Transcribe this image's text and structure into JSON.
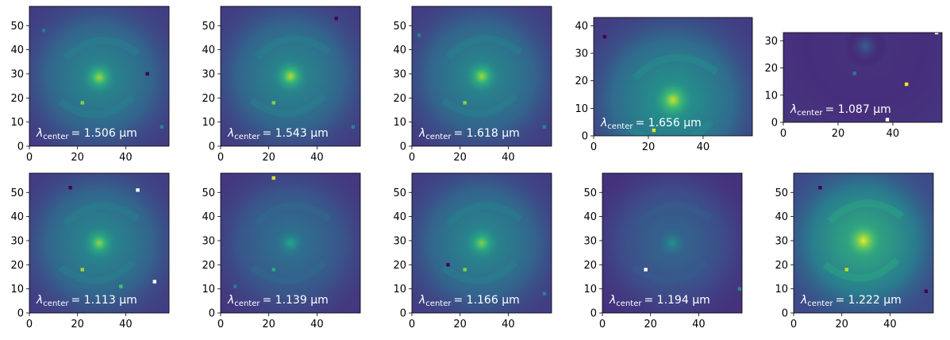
{
  "chart_data": {
    "type": "heatmap",
    "colormap": "viridis",
    "panels": [
      {
        "label_var": "λ",
        "label_sub": "center",
        "value": "1.506",
        "unit": "μm",
        "extent": [
          0,
          58,
          0,
          58
        ],
        "xticks": [
          0,
          20,
          40
        ],
        "yticks": [
          0,
          10,
          20,
          30,
          40,
          50
        ],
        "galaxy": {
          "cx": 29,
          "cy": 28.5,
          "peak": 0.85,
          "disk": 0.4,
          "bg": 0.18
        },
        "sources": [
          {
            "x": 22,
            "y": 18,
            "v": 0.8
          },
          {
            "x": 55,
            "y": 8,
            "v": 0.45
          },
          {
            "x": 49,
            "y": 30,
            "v": 0.0
          },
          {
            "x": 6,
            "y": 48,
            "v": 0.4
          }
        ]
      },
      {
        "label_var": "λ",
        "label_sub": "center",
        "value": "1.543",
        "unit": "μm",
        "extent": [
          0,
          58,
          0,
          58
        ],
        "xticks": [
          0,
          20,
          40
        ],
        "yticks": [
          0,
          10,
          20,
          30,
          40,
          50
        ],
        "galaxy": {
          "cx": 29,
          "cy": 29,
          "peak": 0.88,
          "disk": 0.4,
          "bg": 0.18
        },
        "sources": [
          {
            "x": 22,
            "y": 18,
            "v": 0.8
          },
          {
            "x": 55,
            "y": 8,
            "v": 0.45
          },
          {
            "x": 48,
            "y": 53,
            "v": 0.0
          }
        ]
      },
      {
        "label_var": "λ",
        "label_sub": "center",
        "value": "1.618",
        "unit": "μm",
        "extent": [
          0,
          58,
          0,
          58
        ],
        "xticks": [
          0,
          20,
          40
        ],
        "yticks": [
          0,
          10,
          20,
          30,
          40,
          50
        ],
        "galaxy": {
          "cx": 29,
          "cy": 29,
          "peak": 0.85,
          "disk": 0.4,
          "bg": 0.18
        },
        "sources": [
          {
            "x": 22,
            "y": 18,
            "v": 0.8
          },
          {
            "x": 55,
            "y": 8,
            "v": 0.45
          },
          {
            "x": 3,
            "y": 46,
            "v": 0.45
          }
        ]
      },
      {
        "label_var": "λ",
        "label_sub": "center",
        "value": "1.656",
        "unit": "μm",
        "extent": [
          0,
          58,
          0,
          43
        ],
        "xticks": [
          0,
          20,
          40
        ],
        "yticks": [
          0,
          10,
          20,
          30,
          40
        ],
        "galaxy": {
          "cx": 29,
          "cy": 13,
          "peak": 0.92,
          "disk": 0.45,
          "bg": 0.18
        },
        "sources": [
          {
            "x": 22,
            "y": 2,
            "v": 0.95
          },
          {
            "x": 4,
            "y": 36,
            "v": 0.0
          }
        ]
      },
      {
        "label_var": "λ",
        "label_sub": "center",
        "value": "1.087",
        "unit": "μm",
        "extent": [
          0,
          58,
          0,
          33
        ],
        "xticks": [
          0,
          20,
          40
        ],
        "yticks": [
          0,
          10,
          20,
          30
        ],
        "galaxy": {
          "cx": 30,
          "cy": 28,
          "peak": 0.3,
          "disk": 0.05,
          "bg": 0.15
        },
        "sources": [
          {
            "x": 45,
            "y": 14,
            "v": 0.98
          },
          {
            "x": 38,
            "y": 1,
            "v": 1.0
          },
          {
            "x": 56,
            "y": 33,
            "v": 1.0
          },
          {
            "x": 26,
            "y": 18,
            "v": 0.4
          }
        ]
      },
      {
        "label_var": "λ",
        "label_sub": "center",
        "value": "1.113",
        "unit": "μm",
        "extent": [
          0,
          58,
          0,
          58
        ],
        "xticks": [
          0,
          20,
          40
        ],
        "yticks": [
          0,
          10,
          20,
          30,
          40,
          50
        ],
        "galaxy": {
          "cx": 29,
          "cy": 29,
          "peak": 0.82,
          "disk": 0.4,
          "bg": 0.18
        },
        "sources": [
          {
            "x": 22,
            "y": 18,
            "v": 0.85
          },
          {
            "x": 45,
            "y": 51,
            "v": 1.0
          },
          {
            "x": 52,
            "y": 13,
            "v": 1.0
          },
          {
            "x": 17,
            "y": 52,
            "v": 0.0
          },
          {
            "x": 38,
            "y": 11,
            "v": 0.7
          }
        ]
      },
      {
        "label_var": "λ",
        "label_sub": "center",
        "value": "1.139",
        "unit": "μm",
        "extent": [
          0,
          58,
          0,
          58
        ],
        "xticks": [
          0,
          20,
          40
        ],
        "yticks": [
          0,
          10,
          20,
          30,
          40,
          50
        ],
        "galaxy": {
          "cx": 29,
          "cy": 29,
          "peak": 0.58,
          "disk": 0.3,
          "bg": 0.16
        },
        "sources": [
          {
            "x": 22,
            "y": 56,
            "v": 0.95
          },
          {
            "x": 22,
            "y": 18,
            "v": 0.6
          },
          {
            "x": 6,
            "y": 11,
            "v": 0.4
          }
        ]
      },
      {
        "label_var": "λ",
        "label_sub": "center",
        "value": "1.166",
        "unit": "μm",
        "extent": [
          0,
          58,
          0,
          58
        ],
        "xticks": [
          0,
          20,
          40
        ],
        "yticks": [
          0,
          10,
          20,
          30,
          40,
          50
        ],
        "galaxy": {
          "cx": 29,
          "cy": 29,
          "peak": 0.8,
          "disk": 0.4,
          "bg": 0.18
        },
        "sources": [
          {
            "x": 22,
            "y": 18,
            "v": 0.8
          },
          {
            "x": 55,
            "y": 8,
            "v": 0.45
          },
          {
            "x": 15,
            "y": 20,
            "v": 0.0
          }
        ]
      },
      {
        "label_var": "λ",
        "label_sub": "center",
        "value": "1.194",
        "unit": "μm",
        "extent": [
          0,
          58,
          0,
          58
        ],
        "xticks": [
          0,
          20,
          40
        ],
        "yticks": [
          0,
          10,
          20,
          30,
          40,
          50
        ],
        "galaxy": {
          "cx": 29,
          "cy": 29,
          "peak": 0.5,
          "disk": 0.25,
          "bg": 0.14
        },
        "sources": [
          {
            "x": 18,
            "y": 18,
            "v": 1.0
          },
          {
            "x": 57,
            "y": 10,
            "v": 0.5
          }
        ]
      },
      {
        "label_var": "λ",
        "label_sub": "center",
        "value": "1.222",
        "unit": "μm",
        "extent": [
          0,
          58,
          0,
          58
        ],
        "xticks": [
          0,
          20,
          40
        ],
        "yticks": [
          0,
          10,
          20,
          30,
          40,
          50
        ],
        "galaxy": {
          "cx": 29,
          "cy": 30,
          "peak": 0.98,
          "disk": 0.55,
          "bg": 0.22
        },
        "sources": [
          {
            "x": 22,
            "y": 18,
            "v": 0.9
          },
          {
            "x": 11,
            "y": 52,
            "v": 0.0
          },
          {
            "x": 55,
            "y": 9,
            "v": 0.0
          }
        ]
      }
    ]
  }
}
